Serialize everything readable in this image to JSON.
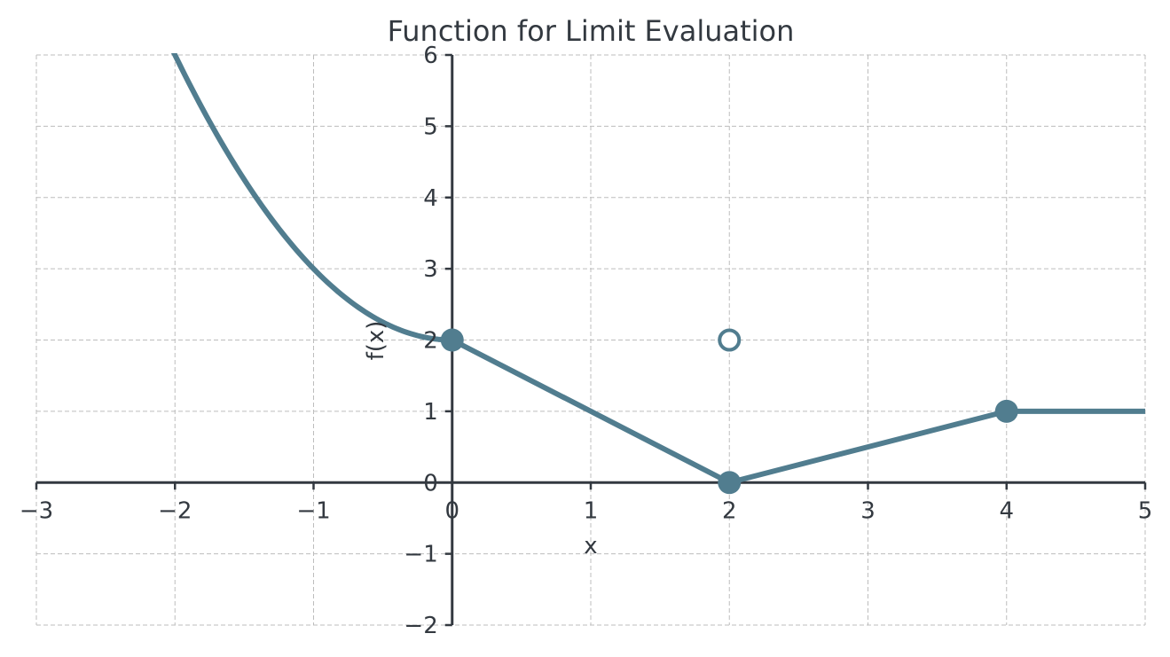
{
  "chart_data": {
    "type": "line",
    "title": "Function for Limit Evaluation",
    "xlabel": "x",
    "ylabel": "f(x)",
    "xlim": [
      -3,
      5
    ],
    "ylim": [
      -2,
      6
    ],
    "xticks": [
      -3,
      -2,
      -1,
      0,
      1,
      2,
      3,
      4,
      5
    ],
    "yticks": [
      -2,
      -1,
      0,
      1,
      2,
      3,
      4,
      5,
      6
    ],
    "xtick_labels": [
      "−3",
      "−2",
      "−1",
      "0",
      "1",
      "2",
      "3",
      "4",
      "5"
    ],
    "ytick_labels": [
      "−2",
      "−1",
      "0",
      "1",
      "2",
      "3",
      "4",
      "5",
      "6"
    ],
    "grid": true,
    "line_color": "#517d8f",
    "axis_color": "#333940",
    "pieces": [
      {
        "name": "x^2 + 2",
        "domain": [
          -3,
          0
        ],
        "formula": "x^2 + 2"
      },
      {
        "name": "2 - x",
        "domain": [
          0,
          2
        ],
        "points": [
          [
            0,
            2
          ],
          [
            2,
            0
          ]
        ]
      },
      {
        "name": "(x - 2) / 2",
        "domain": [
          2,
          4
        ],
        "points": [
          [
            2,
            0
          ],
          [
            4,
            1
          ]
        ]
      },
      {
        "name": "1",
        "domain": [
          4,
          5
        ],
        "points": [
          [
            4,
            1
          ],
          [
            5,
            1
          ]
        ]
      }
    ],
    "closed_points": [
      [
        0,
        2
      ],
      [
        2,
        0
      ],
      [
        4,
        1
      ]
    ],
    "open_points": [
      [
        2,
        2
      ]
    ]
  }
}
